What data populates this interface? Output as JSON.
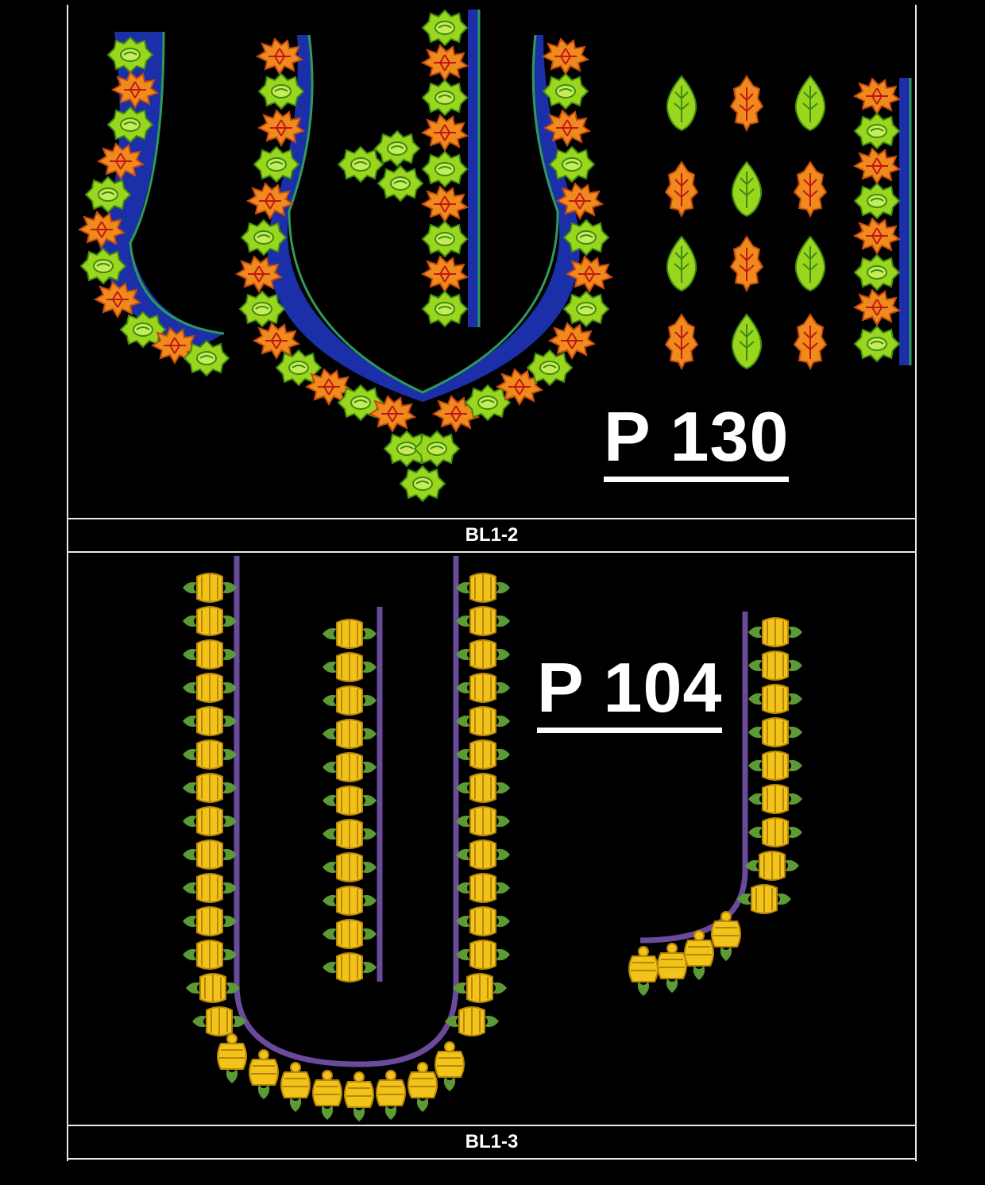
{
  "designs": [
    {
      "code": "P 130",
      "caption": "BL1-2",
      "colors": {
        "leaf_green": "#9bd61f",
        "leaf_green_dark": "#3f8a12",
        "leaf_orange": "#ef8a1c",
        "leaf_orange_dark": "#c44a10",
        "band_blue": "#1b2fa8",
        "outline_green": "#2f9a5a"
      }
    },
    {
      "code": "P 104",
      "caption": "BL1-3",
      "colors": {
        "flower_yellow": "#f2c318",
        "flower_dark": "#b8860b",
        "leaf_green": "#5c9a35",
        "stem_purple": "#6a4a9a"
      }
    }
  ]
}
